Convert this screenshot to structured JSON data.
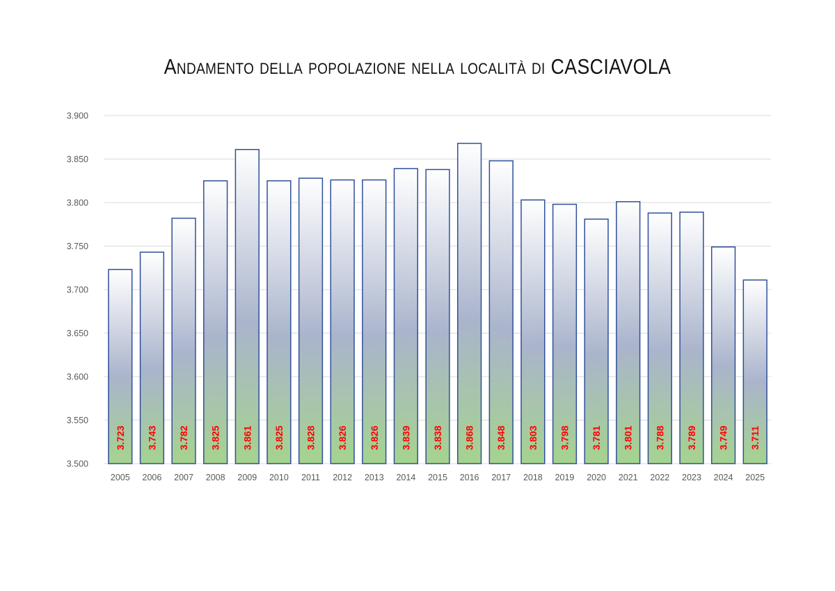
{
  "chart_data": {
    "type": "bar",
    "title": "Andamento della popolazione nella località di CASCIAVOLA",
    "xlabel": "",
    "ylabel": "",
    "categories": [
      "2005",
      "2006",
      "2007",
      "2008",
      "2009",
      "2010",
      "2011",
      "2012",
      "2013",
      "2014",
      "2015",
      "2016",
      "2017",
      "2018",
      "2019",
      "2020",
      "2021",
      "2022",
      "2023",
      "2024",
      "2025"
    ],
    "values": [
      3723,
      3743,
      3782,
      3825,
      3861,
      3825,
      3828,
      3826,
      3826,
      3839,
      3838,
      3868,
      3848,
      3803,
      3798,
      3781,
      3801,
      3788,
      3789,
      3749,
      3711
    ],
    "data_labels": [
      "3.723",
      "3.743",
      "3.782",
      "3.825",
      "3.861",
      "3.825",
      "3.828",
      "3.826",
      "3.826",
      "3.839",
      "3.838",
      "3.868",
      "3.848",
      "3.803",
      "3.798",
      "3.781",
      "3.801",
      "3.788",
      "3.789",
      "3.749",
      "3.711"
    ],
    "ylim": [
      3500,
      3900
    ],
    "yticks": [
      3500,
      3550,
      3600,
      3650,
      3700,
      3750,
      3800,
      3850,
      3900
    ],
    "ytick_labels": [
      "3.500",
      "3.550",
      "3.600",
      "3.650",
      "3.700",
      "3.750",
      "3.800",
      "3.850",
      "3.900"
    ],
    "grid": true,
    "legend": "none",
    "colors": {
      "bar_outline": "#2f4f9a",
      "bar_gradient_top": "#ffffff",
      "bar_gradient_mid": "#aab4cc",
      "bar_gradient_bottom": "#a5d38f",
      "data_label": "#ff0000",
      "gridline": "#d9d9d9",
      "tick_label": "#595959"
    }
  }
}
